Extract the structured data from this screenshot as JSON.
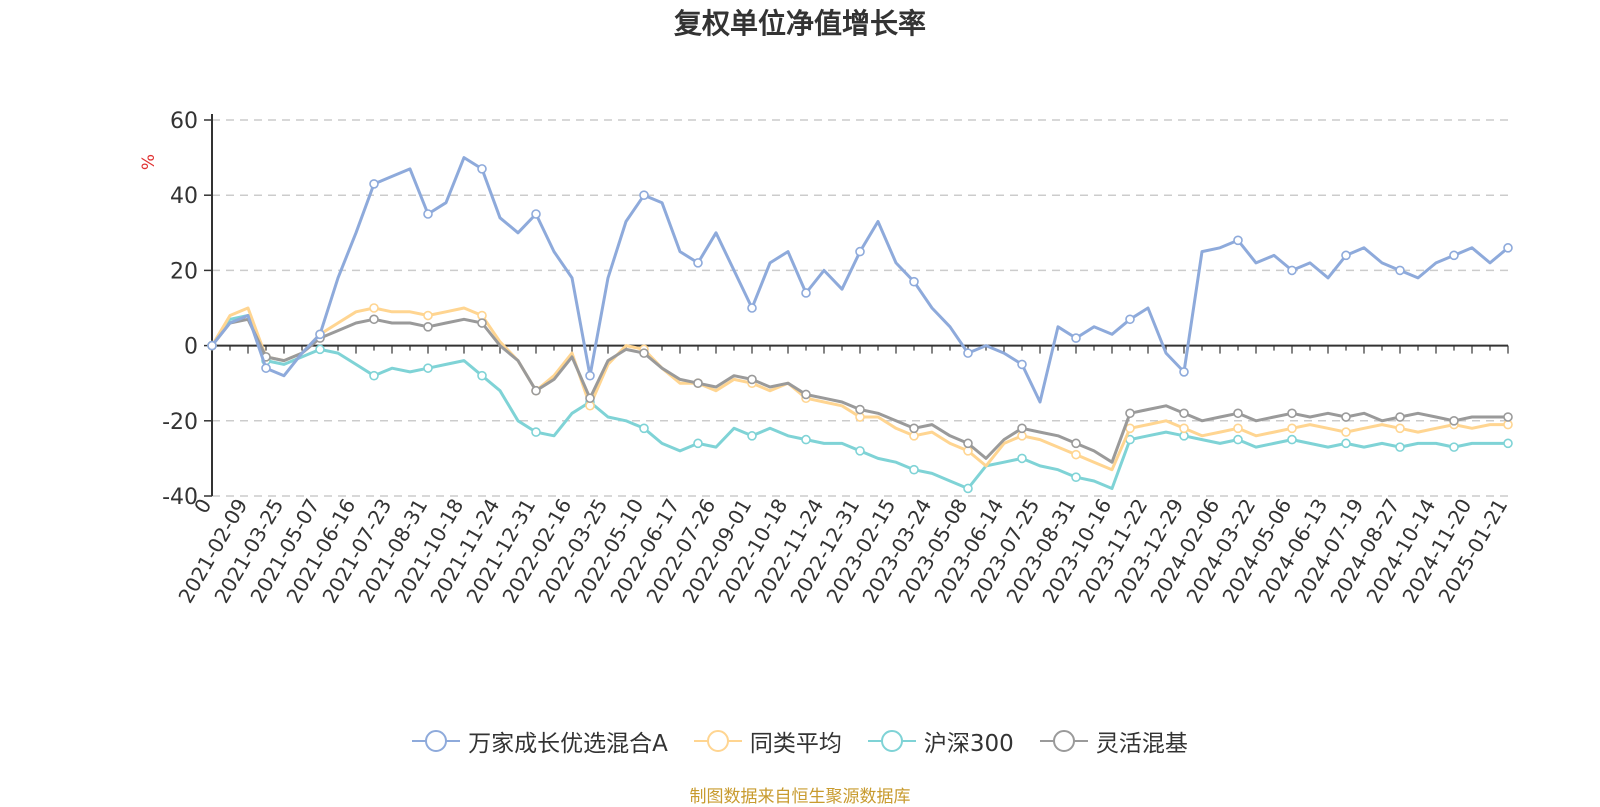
{
  "title": "复权单位净值增长率",
  "source_note": "制图数据来自恒生聚源数据库",
  "colors": {
    "series1": "#8eaadb",
    "series2": "#ffd591",
    "series3": "#7fd3d6",
    "series4": "#9a9a9a",
    "source": "#c89b2f",
    "ylabel": "#e03131"
  },
  "chart_data": {
    "type": "line",
    "title": "复权单位净值增长率",
    "ylabel": "%",
    "xlabel": "",
    "ylim": [
      -40,
      60
    ],
    "yticks": [
      60,
      40,
      20,
      0,
      -20,
      -40
    ],
    "grid": "horizontal-dashed",
    "legend_position": "bottom-center",
    "x_ticks": [
      "0",
      "2021-02-09",
      "2021-03-25",
      "2021-05-07",
      "2021-06-16",
      "2021-07-23",
      "2021-08-31",
      "2021-10-18",
      "2021-11-24",
      "2021-12-31",
      "2022-02-16",
      "2022-03-25",
      "2022-05-10",
      "2022-06-17",
      "2022-07-26",
      "2022-09-01",
      "2022-10-18",
      "2022-11-24",
      "2022-12-31",
      "2023-02-15",
      "2023-03-24",
      "2023-05-08",
      "2023-06-14",
      "2023-07-25",
      "2023-08-31",
      "2023-10-16",
      "2023-11-22",
      "2023-12-29",
      "2024-02-06",
      "2024-03-22",
      "2024-05-06",
      "2024-06-13",
      "2024-07-19",
      "2024-08-27",
      "2024-10-14",
      "2024-11-20",
      "2025-01-21"
    ],
    "x": [
      0,
      0.5,
      1,
      1.5,
      2,
      2.5,
      3,
      3.5,
      4,
      4.5,
      5,
      5.5,
      6,
      6.5,
      7,
      7.5,
      8,
      8.5,
      9,
      9.5,
      10,
      10.5,
      11,
      11.5,
      12,
      12.5,
      13,
      13.5,
      14,
      14.5,
      15,
      15.5,
      16,
      16.5,
      17,
      17.5,
      18,
      18.5,
      19,
      19.5,
      20,
      20.5,
      21,
      21.5,
      22,
      22.5,
      23,
      23.5,
      24,
      24.5,
      25,
      25.5,
      26,
      26.5,
      27,
      27.5,
      28,
      28.5,
      29,
      29.5,
      30,
      30.5,
      31,
      31.5,
      32,
      32.5,
      33,
      33.5,
      34,
      34.5,
      35,
      35.5,
      36
    ],
    "series": [
      {
        "name": "万家成长优选混合A",
        "values": [
          0,
          6,
          8,
          -6,
          -8,
          -2,
          3,
          18,
          30,
          43,
          45,
          47,
          35,
          38,
          50,
          47,
          34,
          30,
          35,
          25,
          18,
          -8,
          18,
          33,
          40,
          38,
          25,
          22,
          30,
          20,
          10,
          22,
          25,
          14,
          20,
          15,
          25,
          33,
          22,
          17,
          10,
          5,
          -2,
          0,
          -2,
          -5,
          -15,
          5,
          2,
          5,
          3,
          7,
          10,
          -2,
          -7,
          25,
          26,
          28,
          22,
          24,
          20,
          22,
          18,
          24,
          26,
          22,
          20,
          18,
          22,
          24,
          26,
          22,
          26
        ]
      },
      {
        "name": "同类平均",
        "values": [
          0,
          8,
          10,
          -3,
          -4,
          -2,
          3,
          6,
          9,
          10,
          9,
          9,
          8,
          9,
          10,
          8,
          1,
          -4,
          -12,
          -8,
          -2,
          -16,
          -5,
          0,
          -1,
          -6,
          -10,
          -10,
          -12,
          -9,
          -10,
          -12,
          -10,
          -14,
          -15,
          -16,
          -19,
          -19,
          -22,
          -24,
          -23,
          -26,
          -28,
          -32,
          -26,
          -24,
          -25,
          -27,
          -29,
          -31,
          -33,
          -22,
          -21,
          -20,
          -22,
          -24,
          -23,
          -22,
          -24,
          -23,
          -22,
          -21,
          -22,
          -23,
          -22,
          -21,
          -22,
          -23,
          -22,
          -21,
          -22,
          -21,
          -21
        ]
      },
      {
        "name": "沪深300",
        "values": [
          0,
          7,
          8,
          -4,
          -5,
          -3,
          -1,
          -2,
          -5,
          -8,
          -6,
          -7,
          -6,
          -5,
          -4,
          -8,
          -12,
          -20,
          -23,
          -24,
          -18,
          -15,
          -19,
          -20,
          -22,
          -26,
          -28,
          -26,
          -27,
          -22,
          -24,
          -22,
          -24,
          -25,
          -26,
          -26,
          -28,
          -30,
          -31,
          -33,
          -34,
          -36,
          -38,
          -32,
          -31,
          -30,
          -32,
          -33,
          -35,
          -36,
          -38,
          -25,
          -24,
          -23,
          -24,
          -25,
          -26,
          -25,
          -27,
          -26,
          -25,
          -26,
          -27,
          -26,
          -27,
          -26,
          -27,
          -26,
          -26,
          -27,
          -26,
          -26,
          -26
        ]
      },
      {
        "name": "灵活混基",
        "values": [
          0,
          6,
          7,
          -3,
          -4,
          -2,
          2,
          4,
          6,
          7,
          6,
          6,
          5,
          6,
          7,
          6,
          0,
          -4,
          -12,
          -9,
          -3,
          -14,
          -4,
          -1,
          -2,
          -6,
          -9,
          -10,
          -11,
          -8,
          -9,
          -11,
          -10,
          -13,
          -14,
          -15,
          -17,
          -18,
          -20,
          -22,
          -21,
          -24,
          -26,
          -30,
          -25,
          -22,
          -23,
          -24,
          -26,
          -28,
          -31,
          -18,
          -17,
          -16,
          -18,
          -20,
          -19,
          -18,
          -20,
          -19,
          -18,
          -19,
          -18,
          -19,
          -18,
          -20,
          -19,
          -18,
          -19,
          -20,
          -19,
          -19,
          -19
        ]
      }
    ]
  }
}
